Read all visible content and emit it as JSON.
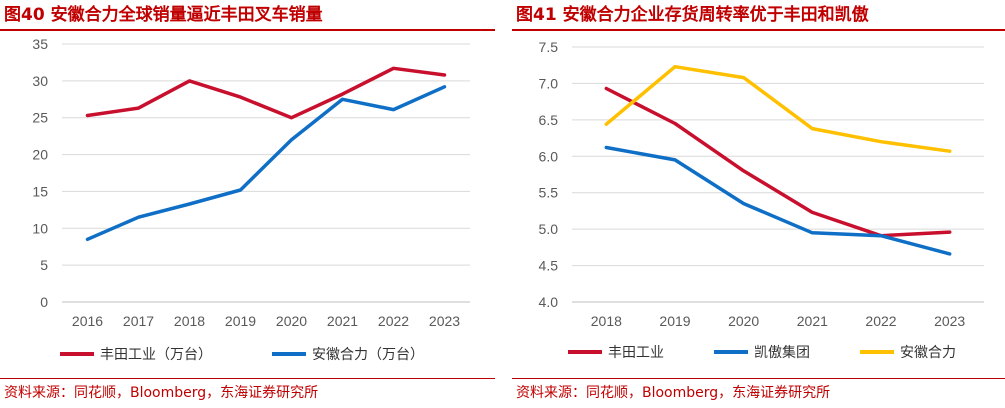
{
  "left": {
    "title": "图40  安徽合力全球销量逼近丰田叉车销量",
    "source": "资料来源：同花顺，Bloomberg，东海证券研究所"
  },
  "right": {
    "title": "图41  安徽合力企业存货周转率优于丰田和凯傲",
    "source": "资料来源：同花顺，Bloomberg，东海证券研究所"
  },
  "chart_data": [
    {
      "type": "line",
      "title": "图40  安徽合力全球销量逼近丰田叉车销量",
      "categories": [
        "2016",
        "2017",
        "2018",
        "2019",
        "2020",
        "2021",
        "2022",
        "2023"
      ],
      "ylim": [
        0,
        35
      ],
      "yticks": [
        "0",
        "5",
        "10",
        "15",
        "20",
        "25",
        "30",
        "35"
      ],
      "grid": true,
      "legend": "bottom",
      "series": [
        {
          "name": "丰田工业（万台）",
          "color": "#c8102e",
          "values": [
            25.3,
            26.3,
            30.0,
            27.8,
            25.0,
            28.2,
            31.7,
            30.8
          ]
        },
        {
          "name": "安徽合力（万台）",
          "color": "#0f6fc6",
          "values": [
            8.5,
            11.5,
            13.3,
            15.2,
            22.0,
            27.5,
            26.1,
            29.2
          ]
        }
      ]
    },
    {
      "type": "line",
      "title": "图41  安徽合力企业存货周转率优于丰田和凯傲",
      "categories": [
        "2018",
        "2019",
        "2020",
        "2021",
        "2022",
        "2023"
      ],
      "ylim": [
        4.0,
        7.5
      ],
      "yticks": [
        "4.0",
        "4.5",
        "5.0",
        "5.5",
        "6.0",
        "6.5",
        "7.0",
        "7.5"
      ],
      "grid": true,
      "legend": "bottom",
      "series": [
        {
          "name": "丰田工业",
          "color": "#c8102e",
          "values": [
            6.93,
            6.45,
            5.8,
            5.23,
            4.91,
            4.96
          ]
        },
        {
          "name": "凯傲集团",
          "color": "#0f6fc6",
          "values": [
            6.12,
            5.95,
            5.35,
            4.95,
            4.91,
            4.66
          ]
        },
        {
          "name": "安徽合力",
          "color": "#ffc000",
          "values": [
            6.44,
            7.23,
            7.08,
            6.38,
            6.2,
            6.07
          ]
        }
      ]
    }
  ]
}
